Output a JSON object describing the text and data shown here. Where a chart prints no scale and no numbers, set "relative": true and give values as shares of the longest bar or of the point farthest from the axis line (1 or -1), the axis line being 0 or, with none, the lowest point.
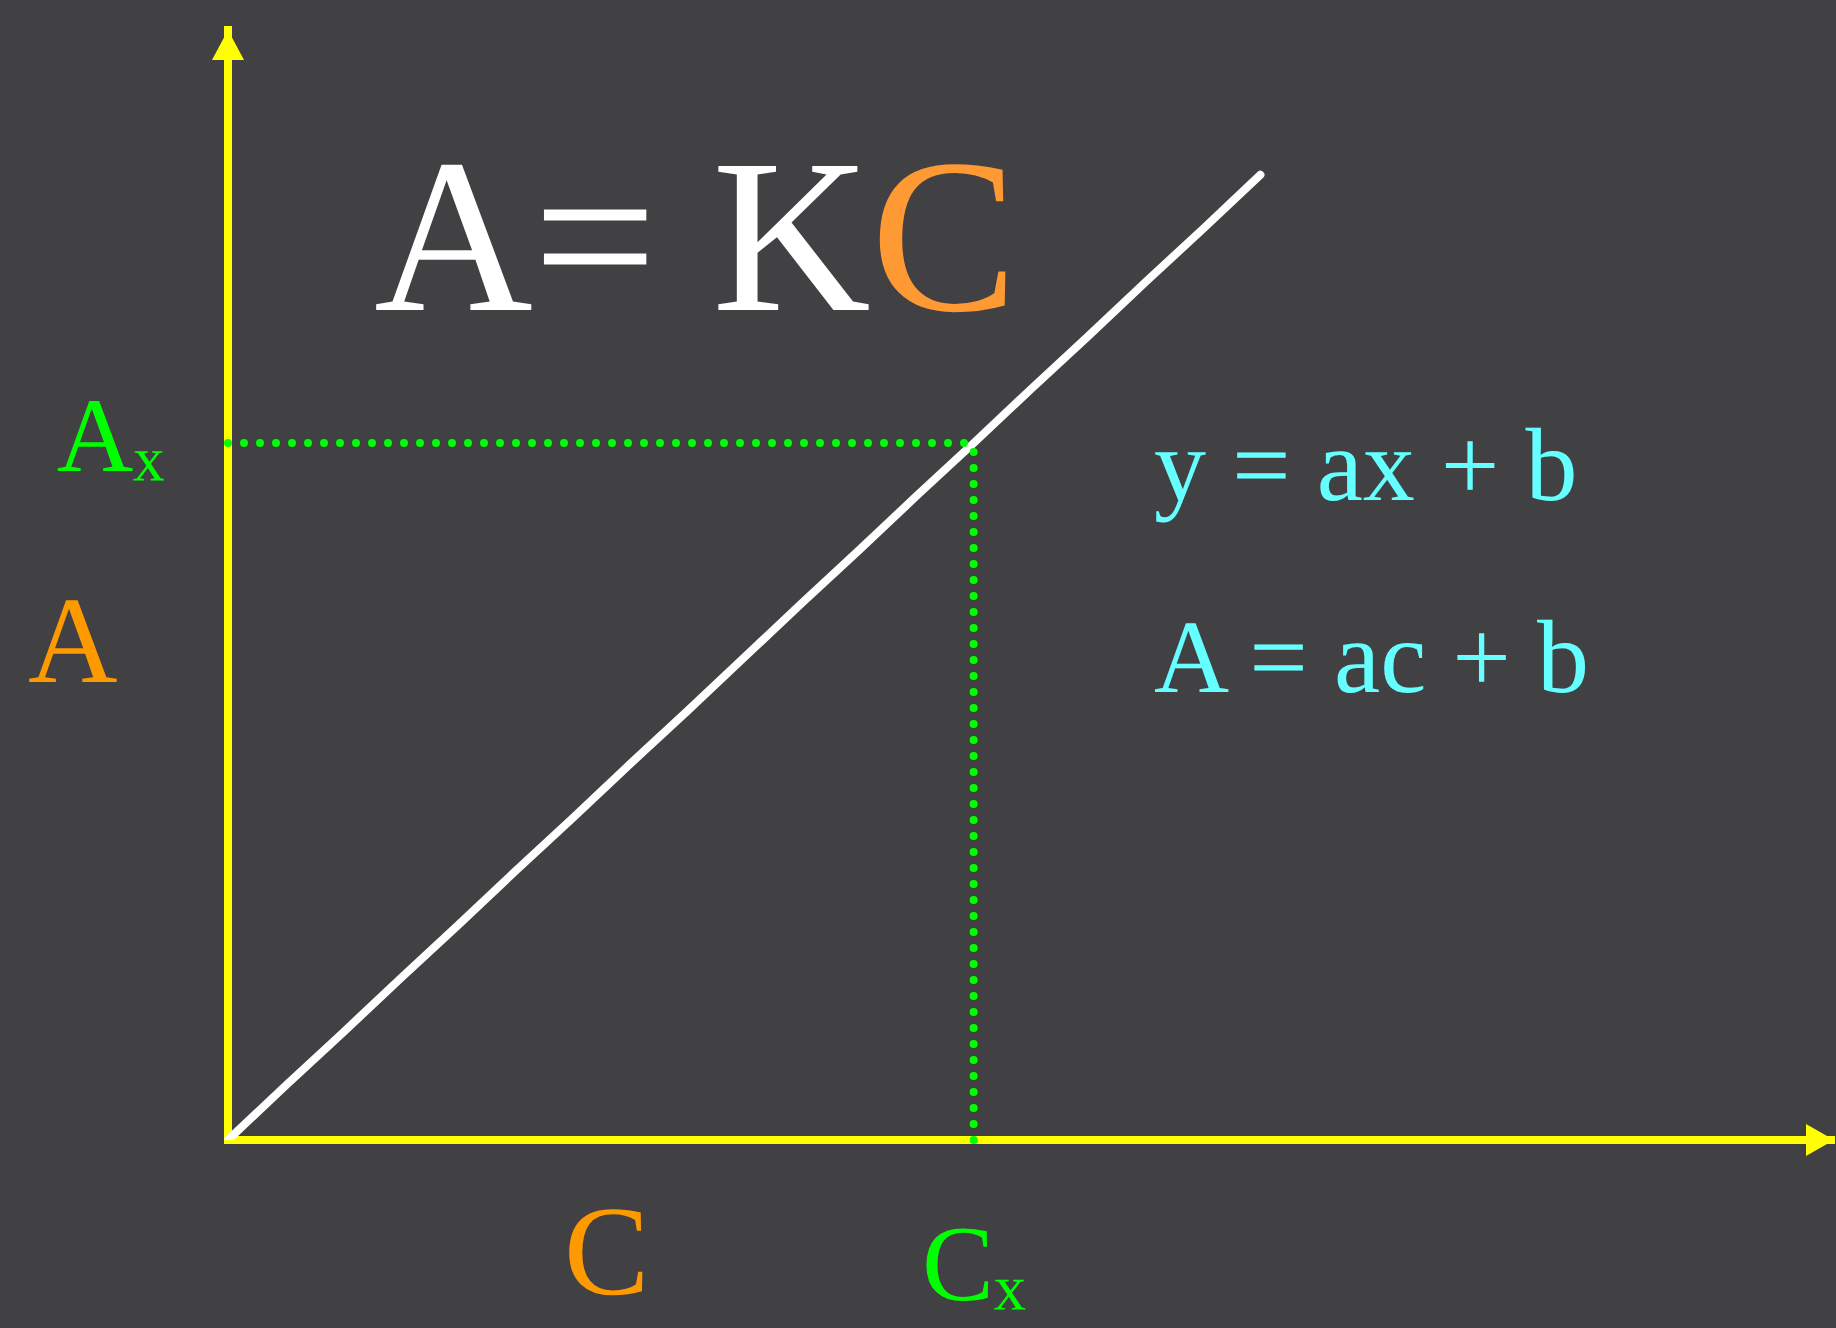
{
  "chart_data": {
    "type": "line",
    "title": "A= KC",
    "xlabel": "C",
    "ylabel": "A",
    "annotations": [
      "y = ax + b",
      "A = ac + b",
      {
        "text": "Cₓ",
        "y": 0.722
      }
    ],
    "categories": [
      null,
      null,
      null,
      null,
      null,
      null,
      null,
      null,
      null,
      null,
      null,
      null,
      null,
      null,
      null,
      null,
      null,
      null,
      null,
      null,
      null,
      null,
      null,
      null,
      null,
      null,
      null,
      null,
      null
    ],
    "series": [
      {
        "color": "#ffffff",
        "values": [
          0,
          0.056,
          0.111,
          0.167,
          0.222,
          0.278,
          0.333,
          0.389,
          0.444,
          0.5,
          0.556,
          0.611,
          0.667,
          0.722,
          0.778,
          0.833,
          0.889,
          0.944,
          1,
          null,
          null,
          null,
          null,
          null,
          null,
          null,
          null,
          null,
          null
        ]
      }
    ],
    "relative": true,
    "ref_lines": [
      {
        "axis": "y",
        "value": 0.722,
        "label": "Aₓ",
        "color": "#00ff00",
        "line_style": "dotted"
      }
    ],
    "marker": "none"
  }
}
